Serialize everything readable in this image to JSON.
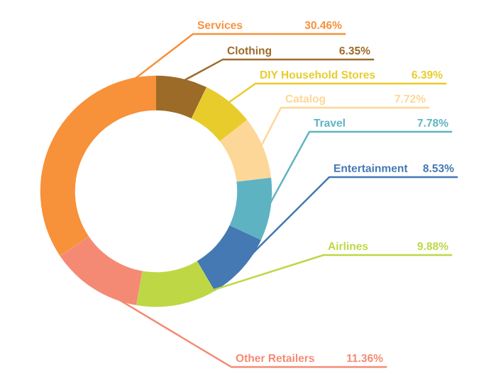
{
  "chart_data": {
    "type": "donut",
    "categories": [
      "Services",
      "Clothing",
      "DIY Household Stores",
      "Catalog",
      "Travel",
      "Entertainment",
      "Airlines",
      "Other Retailers"
    ],
    "values": [
      30.46,
      6.35,
      6.39,
      7.72,
      7.78,
      8.53,
      9.88,
      11.36
    ],
    "value_labels": [
      "30.46%",
      "6.35%",
      "6.39%",
      "7.72%",
      "7.78%",
      "8.53%",
      "9.88%",
      "11.36%"
    ],
    "colors": [
      "#f7913a",
      "#9c6b28",
      "#e8cc2c",
      "#fdd797",
      "#5db3c2",
      "#4479b3",
      "#bdd844",
      "#f58a74"
    ],
    "legend": false
  }
}
